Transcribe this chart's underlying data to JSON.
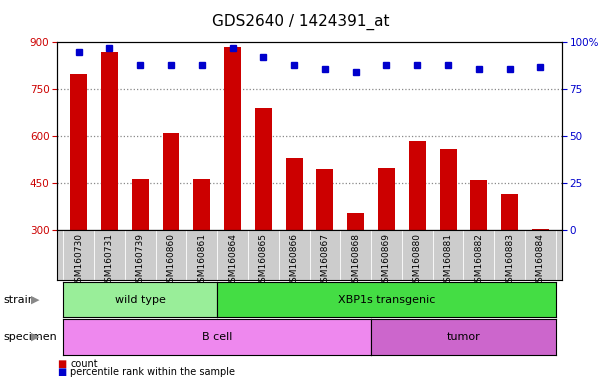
{
  "title": "GDS2640 / 1424391_at",
  "samples": [
    "GSM160730",
    "GSM160731",
    "GSM160739",
    "GSM160860",
    "GSM160861",
    "GSM160864",
    "GSM160865",
    "GSM160866",
    "GSM160867",
    "GSM160868",
    "GSM160869",
    "GSM160880",
    "GSM160881",
    "GSM160882",
    "GSM160883",
    "GSM160884"
  ],
  "counts": [
    800,
    870,
    465,
    610,
    465,
    885,
    690,
    530,
    495,
    355,
    500,
    585,
    560,
    460,
    415,
    305
  ],
  "percentile_ranks": [
    95,
    97,
    88,
    88,
    88,
    97,
    92,
    88,
    86,
    84,
    88,
    88,
    88,
    86,
    86,
    87
  ],
  "ymin": 300,
  "ymax": 900,
  "yticks_left": [
    300,
    450,
    600,
    750,
    900
  ],
  "yticks_right": [
    0,
    25,
    50,
    75,
    100
  ],
  "bar_color": "#cc0000",
  "dot_color": "#0000cc",
  "strain_groups": [
    {
      "label": "wild type",
      "start": 0,
      "end": 5,
      "color": "#99ee99"
    },
    {
      "label": "XBP1s transgenic",
      "start": 5,
      "end": 16,
      "color": "#44dd44"
    }
  ],
  "specimen_groups": [
    {
      "label": "B cell",
      "start": 0,
      "end": 10,
      "color": "#ee88ee"
    },
    {
      "label": "tumor",
      "start": 10,
      "end": 16,
      "color": "#cc66cc"
    }
  ],
  "strain_label": "strain",
  "specimen_label": "specimen",
  "legend_count": "count",
  "legend_percentile": "percentile rank within the sample",
  "tickbg_color": "#cccccc",
  "plot_bg": "#ffffff",
  "grid_color": "#888888",
  "right_axis_color": "#0000cc",
  "left_axis_color": "#cc0000",
  "title_fontsize": 11,
  "tick_fontsize": 6.5,
  "label_fontsize": 8
}
